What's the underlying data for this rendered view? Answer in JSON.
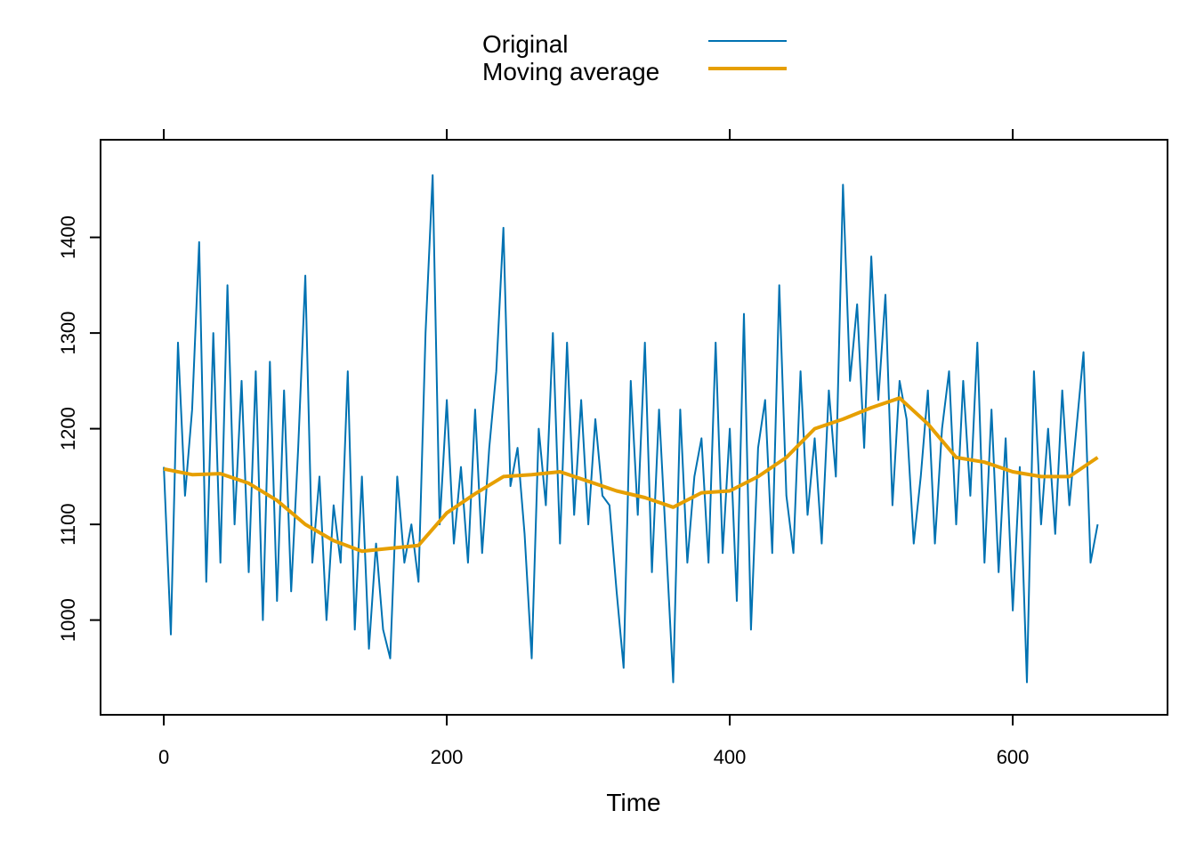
{
  "chart_data": {
    "type": "line",
    "x_label": "Time",
    "xlim": [
      -44.7,
      709.4
    ],
    "xticks": [
      0,
      200,
      400,
      600
    ],
    "ylim": [
      901,
      1502
    ],
    "yticks": [
      1000,
      1100,
      1200,
      1300,
      1400
    ],
    "legend": "top",
    "series": [
      {
        "name": "Original",
        "color": "#0072B2",
        "x": [
          0,
          5,
          10,
          15,
          20,
          25,
          30,
          35,
          40,
          45,
          50,
          55,
          60,
          65,
          70,
          75,
          80,
          85,
          90,
          95,
          100,
          105,
          110,
          115,
          120,
          125,
          130,
          135,
          140,
          145,
          150,
          155,
          160,
          165,
          170,
          175,
          180,
          185,
          190,
          195,
          200,
          205,
          210,
          215,
          220,
          225,
          230,
          235,
          240,
          245,
          250,
          255,
          260,
          265,
          270,
          275,
          280,
          285,
          290,
          295,
          300,
          305,
          310,
          315,
          320,
          325,
          330,
          335,
          340,
          345,
          350,
          355,
          360,
          365,
          370,
          375,
          380,
          385,
          390,
          395,
          400,
          405,
          410,
          415,
          420,
          425,
          430,
          435,
          440,
          445,
          450,
          455,
          460,
          465,
          470,
          475,
          480,
          485,
          490,
          495,
          500,
          505,
          510,
          515,
          520,
          525,
          530,
          535,
          540,
          545,
          550,
          555,
          560,
          565,
          570,
          575,
          580,
          585,
          590,
          595,
          600,
          605,
          610,
          615,
          620,
          625,
          630,
          635,
          640,
          645,
          650,
          655,
          660
        ],
        "values": [
          1160,
          985,
          1290,
          1130,
          1220,
          1395,
          1040,
          1300,
          1060,
          1350,
          1100,
          1250,
          1050,
          1260,
          1000,
          1270,
          1020,
          1240,
          1030,
          1180,
          1360,
          1060,
          1150,
          1000,
          1120,
          1060,
          1260,
          990,
          1150,
          970,
          1080,
          990,
          960,
          1150,
          1060,
          1100,
          1040,
          1300,
          1465,
          1100,
          1230,
          1080,
          1160,
          1060,
          1220,
          1070,
          1180,
          1260,
          1410,
          1140,
          1180,
          1090,
          960,
          1200,
          1120,
          1300,
          1080,
          1290,
          1110,
          1230,
          1100,
          1210,
          1130,
          1120,
          1030,
          950,
          1250,
          1110,
          1290,
          1050,
          1220,
          1080,
          935,
          1220,
          1060,
          1150,
          1190,
          1060,
          1290,
          1070,
          1200,
          1020,
          1320,
          990,
          1180,
          1230,
          1070,
          1350,
          1130,
          1070,
          1260,
          1110,
          1190,
          1080,
          1240,
          1150,
          1455,
          1250,
          1330,
          1180,
          1380,
          1230,
          1340,
          1120,
          1250,
          1210,
          1080,
          1150,
          1240,
          1080,
          1200,
          1260,
          1100,
          1250,
          1130,
          1290,
          1060,
          1220,
          1050,
          1190,
          1010,
          1160,
          935,
          1260,
          1100,
          1200,
          1090,
          1240,
          1120,
          1200,
          1280,
          1060,
          1100
        ]
      },
      {
        "name": "Moving average",
        "color": "#E69F00",
        "x": [
          0,
          20,
          40,
          60,
          80,
          100,
          120,
          140,
          160,
          180,
          200,
          220,
          240,
          260,
          280,
          300,
          320,
          340,
          360,
          380,
          400,
          420,
          440,
          460,
          480,
          500,
          520,
          540,
          560,
          580,
          600,
          620,
          640,
          660
        ],
        "values": [
          1158,
          1152,
          1153,
          1143,
          1125,
          1100,
          1083,
          1072,
          1075,
          1078,
          1112,
          1132,
          1150,
          1152,
          1155,
          1145,
          1135,
          1128,
          1118,
          1133,
          1135,
          1150,
          1170,
          1200,
          1210,
          1222,
          1232,
          1205,
          1170,
          1165,
          1155,
          1150,
          1150,
          1170
        ]
      }
    ]
  }
}
